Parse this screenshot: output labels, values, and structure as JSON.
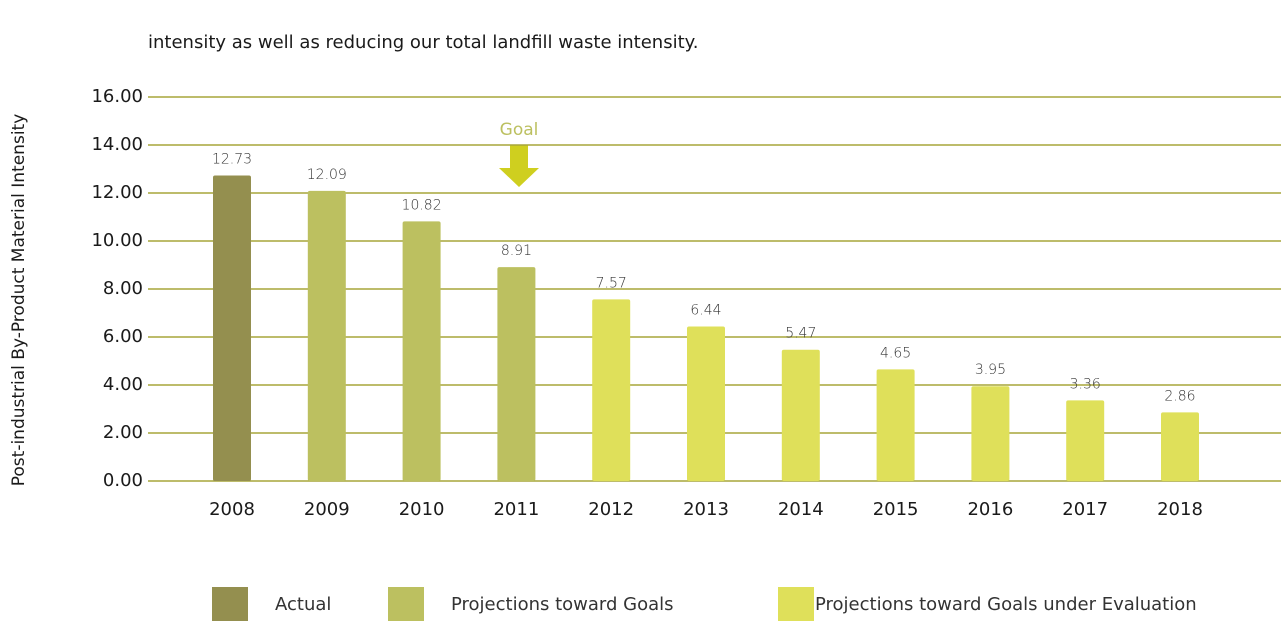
{
  "chart_data": {
    "type": "bar",
    "subtitle": "intensity as well as reducing our total landfill waste intensity.",
    "y_label": "Post-industrial By-Product Material Intensity",
    "annotation": "Goal",
    "categories": [
      "2008",
      "2009",
      "2010",
      "2011",
      "2012",
      "2013",
      "2014",
      "2015",
      "2016",
      "2017",
      "2018"
    ],
    "series": [
      {
        "name": "Actual",
        "color": "#948f4f",
        "values": [
          12.73,
          null,
          null,
          null,
          null,
          null,
          null,
          null,
          null,
          null,
          null
        ]
      },
      {
        "name": "Projections toward Goals",
        "color": "#bcc060",
        "values": [
          null,
          12.09,
          10.82,
          8.91,
          null,
          null,
          null,
          null,
          null,
          null,
          null
        ]
      },
      {
        "name": "Projections toward Goals under Evaluation",
        "color": "#dfe05a",
        "values": [
          null,
          null,
          null,
          null,
          7.57,
          6.44,
          5.47,
          4.65,
          3.95,
          3.36,
          2.86
        ]
      }
    ],
    "ylim": [
      0,
      16
    ],
    "yticks": [
      {
        "value": 0,
        "label": "0.00"
      },
      {
        "value": 2,
        "label": "2.00"
      },
      {
        "value": 4,
        "label": "4.00"
      },
      {
        "value": 6,
        "label": "6.00"
      },
      {
        "value": 8,
        "label": "8.00"
      },
      {
        "value": 10,
        "label": "10.00"
      },
      {
        "value": 12,
        "label": "12.00"
      },
      {
        "value": 14,
        "label": "14.00"
      },
      {
        "value": 16,
        "label": "16.00"
      }
    ],
    "grid": true
  }
}
